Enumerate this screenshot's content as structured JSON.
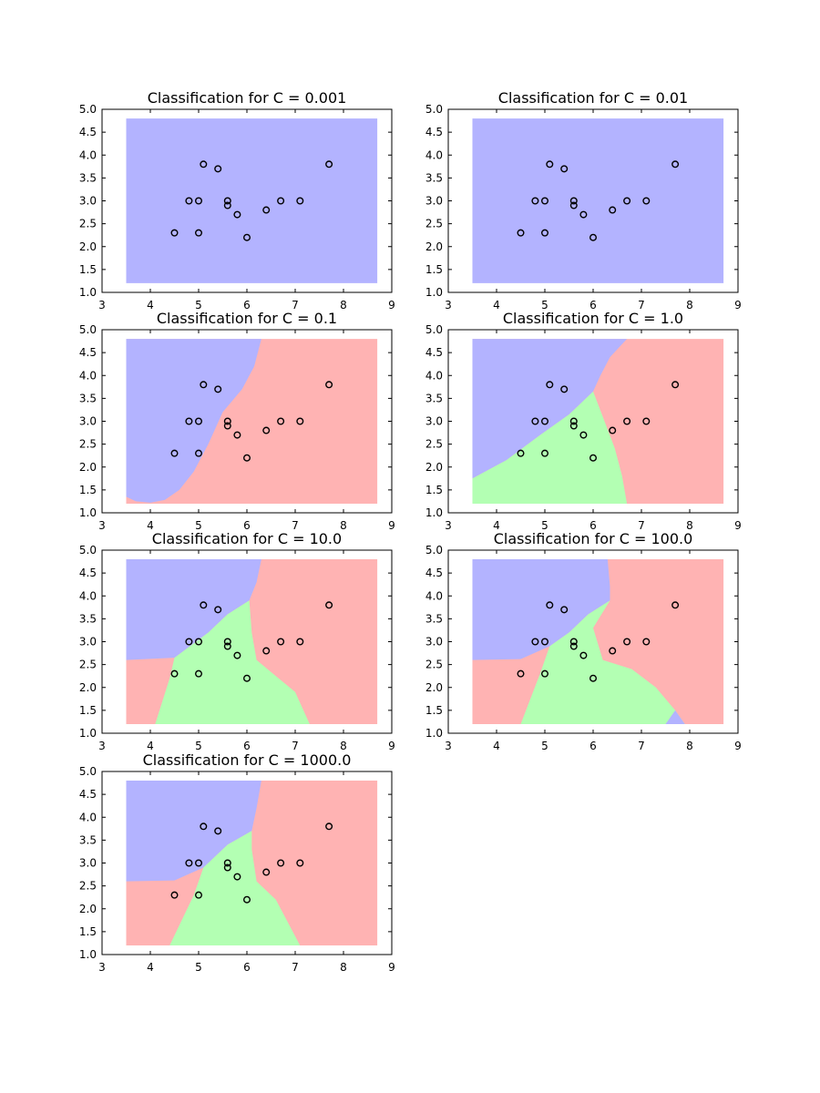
{
  "chart_data": [
    {
      "type": "scatter",
      "title": "Classification for C = 0.001",
      "regions": [
        {
          "class": "blue",
          "polygon": [
            [
              3.5,
              1.2
            ],
            [
              8.7,
              1.2
            ],
            [
              8.7,
              4.8
            ],
            [
              3.5,
              4.8
            ]
          ]
        }
      ]
    },
    {
      "type": "scatter",
      "title": "Classification for C = 0.01",
      "regions": [
        {
          "class": "blue",
          "polygon": [
            [
              3.5,
              1.2
            ],
            [
              8.7,
              1.2
            ],
            [
              8.7,
              4.8
            ],
            [
              3.5,
              4.8
            ]
          ]
        }
      ]
    },
    {
      "type": "scatter",
      "title": "Classification for C = 0.1",
      "regions": [
        {
          "class": "red",
          "polygon": [
            [
              3.5,
              1.2
            ],
            [
              8.7,
              1.2
            ],
            [
              8.7,
              4.8
            ],
            [
              3.5,
              4.8
            ]
          ]
        },
        {
          "class": "blue",
          "polygon": [
            [
              3.5,
              4.8
            ],
            [
              6.3,
              4.8
            ],
            [
              6.15,
              4.2
            ],
            [
              5.9,
              3.7
            ],
            [
              5.5,
              3.2
            ],
            [
              5.2,
              2.5
            ],
            [
              4.9,
              1.9
            ],
            [
              4.6,
              1.5
            ],
            [
              4.3,
              1.28
            ],
            [
              4.0,
              1.22
            ],
            [
              3.7,
              1.25
            ],
            [
              3.5,
              1.35
            ]
          ]
        }
      ]
    },
    {
      "type": "scatter",
      "title": "Classification for C = 1.0",
      "regions": [
        {
          "class": "red",
          "polygon": [
            [
              3.5,
              1.2
            ],
            [
              8.7,
              1.2
            ],
            [
              8.7,
              4.8
            ],
            [
              3.5,
              4.8
            ]
          ]
        },
        {
          "class": "green",
          "polygon": [
            [
              3.5,
              1.2
            ],
            [
              6.7,
              1.2
            ],
            [
              6.6,
              1.8
            ],
            [
              6.45,
              2.4
            ],
            [
              6.2,
              3.1
            ],
            [
              6.0,
              3.65
            ],
            [
              5.5,
              3.15
            ],
            [
              4.9,
              2.7
            ],
            [
              4.2,
              2.15
            ],
            [
              3.5,
              1.75
            ]
          ]
        },
        {
          "class": "blue",
          "polygon": [
            [
              3.5,
              1.75
            ],
            [
              4.2,
              2.15
            ],
            [
              4.9,
              2.7
            ],
            [
              5.5,
              3.15
            ],
            [
              6.0,
              3.65
            ],
            [
              6.15,
              4.0
            ],
            [
              6.35,
              4.4
            ],
            [
              6.7,
              4.8
            ],
            [
              3.5,
              4.8
            ]
          ]
        }
      ]
    },
    {
      "type": "scatter",
      "title": "Classification for C = 10.0",
      "regions": [
        {
          "class": "red",
          "polygon": [
            [
              3.5,
              1.2
            ],
            [
              8.7,
              1.2
            ],
            [
              8.7,
              4.8
            ],
            [
              3.5,
              4.8
            ]
          ]
        },
        {
          "class": "blue",
          "polygon": [
            [
              3.5,
              4.8
            ],
            [
              6.3,
              4.8
            ],
            [
              6.2,
              4.3
            ],
            [
              6.05,
              3.9
            ],
            [
              5.6,
              3.6
            ],
            [
              5.2,
              3.2
            ],
            [
              4.5,
              2.65
            ],
            [
              3.5,
              2.6
            ]
          ]
        },
        {
          "class": "green",
          "polygon": [
            [
              4.5,
              2.65
            ],
            [
              5.2,
              3.2
            ],
            [
              5.6,
              3.6
            ],
            [
              6.05,
              3.9
            ],
            [
              6.1,
              3.2
            ],
            [
              6.2,
              2.6
            ],
            [
              6.6,
              2.25
            ],
            [
              7.0,
              1.9
            ],
            [
              7.3,
              1.2
            ],
            [
              4.1,
              1.2
            ],
            [
              4.4,
              2.2
            ]
          ]
        }
      ]
    },
    {
      "type": "scatter",
      "title": "Classification for C = 100.0",
      "regions": [
        {
          "class": "red",
          "polygon": [
            [
              3.5,
              1.2
            ],
            [
              8.7,
              1.2
            ],
            [
              8.7,
              4.8
            ],
            [
              3.5,
              4.8
            ]
          ]
        },
        {
          "class": "blue",
          "polygon": [
            [
              3.5,
              4.8
            ],
            [
              6.3,
              4.8
            ],
            [
              6.35,
              4.2
            ],
            [
              6.35,
              3.9
            ],
            [
              5.9,
              3.6
            ],
            [
              5.5,
              3.2
            ],
            [
              5.1,
              2.9
            ],
            [
              4.5,
              2.62
            ],
            [
              3.5,
              2.6
            ]
          ]
        },
        {
          "class": "green",
          "polygon": [
            [
              5.1,
              2.9
            ],
            [
              5.5,
              3.2
            ],
            [
              5.9,
              3.6
            ],
            [
              6.35,
              3.9
            ],
            [
              6.0,
              3.3
            ],
            [
              6.2,
              2.6
            ],
            [
              6.8,
              2.4
            ],
            [
              7.3,
              2.0
            ],
            [
              7.7,
              1.5
            ],
            [
              7.9,
              1.2
            ],
            [
              4.5,
              1.2
            ],
            [
              4.9,
              2.3
            ]
          ]
        },
        {
          "class": "blue",
          "polygon": [
            [
              7.7,
              1.5
            ],
            [
              7.9,
              1.2
            ],
            [
              7.5,
              1.2
            ]
          ]
        }
      ]
    },
    {
      "type": "scatter",
      "title": "Classification for C = 1000.0",
      "regions": [
        {
          "class": "red",
          "polygon": [
            [
              3.5,
              1.2
            ],
            [
              8.7,
              1.2
            ],
            [
              8.7,
              4.8
            ],
            [
              3.5,
              4.8
            ]
          ]
        },
        {
          "class": "blue",
          "polygon": [
            [
              3.5,
              4.8
            ],
            [
              6.3,
              4.8
            ],
            [
              6.2,
              4.2
            ],
            [
              6.1,
              3.7
            ],
            [
              5.6,
              3.4
            ],
            [
              5.1,
              2.9
            ],
            [
              4.5,
              2.62
            ],
            [
              3.5,
              2.6
            ]
          ]
        },
        {
          "class": "green",
          "polygon": [
            [
              5.1,
              2.9
            ],
            [
              5.6,
              3.4
            ],
            [
              6.1,
              3.7
            ],
            [
              6.1,
              3.3
            ],
            [
              6.2,
              2.6
            ],
            [
              6.6,
              2.2
            ],
            [
              6.9,
              1.6
            ],
            [
              7.1,
              1.2
            ],
            [
              4.4,
              1.2
            ],
            [
              4.9,
              2.3
            ]
          ]
        }
      ]
    }
  ],
  "shared_axes": {
    "xlim": [
      3,
      9
    ],
    "ylim": [
      1.0,
      5.0
    ],
    "x_ticks": [
      3,
      4,
      5,
      6,
      7,
      8,
      9
    ],
    "x_tick_labels": [
      "3",
      "4",
      "5",
      "6",
      "7",
      "8",
      "9"
    ],
    "y_ticks": [
      1.0,
      1.5,
      2.0,
      2.5,
      3.0,
      3.5,
      4.0,
      4.5,
      5.0
    ],
    "y_tick_labels": [
      "1.0",
      "1.5",
      "2.0",
      "2.5",
      "3.0",
      "3.5",
      "4.0",
      "4.5",
      "5.0"
    ],
    "grid": false
  },
  "points": {
    "x": [
      5.1,
      5.4,
      7.7,
      4.8,
      5.0,
      5.6,
      5.6,
      6.7,
      7.1,
      5.8,
      6.4,
      4.5,
      5.0,
      6.0
    ],
    "y": [
      3.8,
      3.7,
      3.8,
      3.0,
      3.0,
      3.0,
      2.9,
      3.0,
      3.0,
      2.7,
      2.8,
      2.3,
      2.3,
      2.2
    ]
  },
  "colors": {
    "blue": "#b3b3ff",
    "red": "#ffb3b3",
    "green": "#b3ffb3",
    "marker_edge": "#000000",
    "axes": "#000000"
  }
}
